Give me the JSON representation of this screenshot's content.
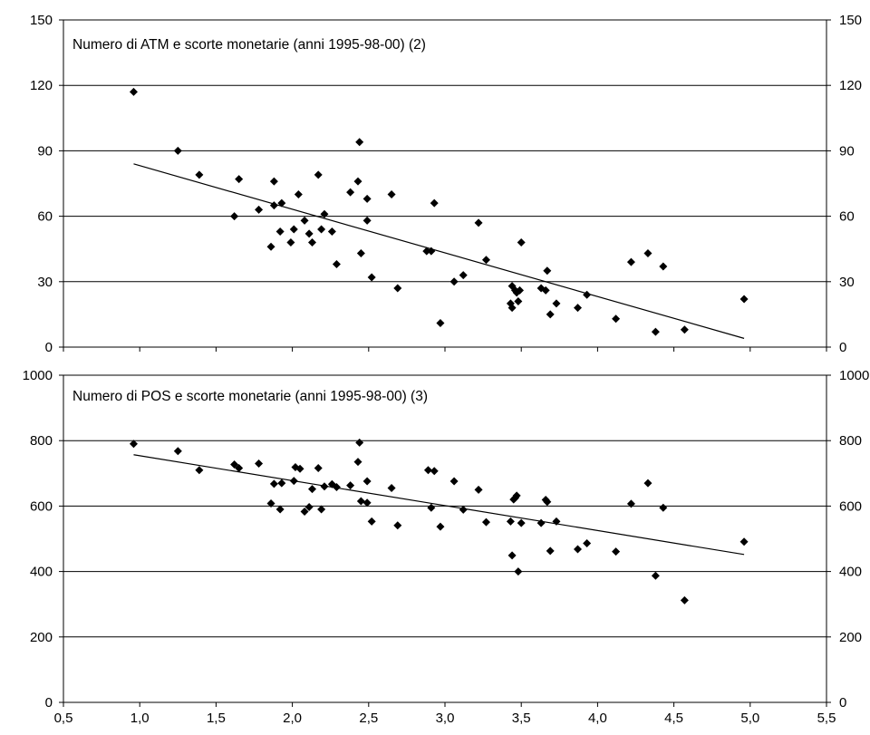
{
  "chart_data": [
    {
      "type": "scatter",
      "title": "Numero di ATM e scorte monetarie (anni 1995-98-00)  (2)",
      "xlim": [
        0.5,
        5.5
      ],
      "ylim": [
        0,
        150
      ],
      "yticks": [
        "0",
        "30",
        "60",
        "90",
        "120",
        "150"
      ],
      "dual_y_axis": true,
      "grid": "horizontal",
      "marker": "diamond",
      "points": [
        {
          "x": 0.96,
          "y": 117
        },
        {
          "x": 1.25,
          "y": 90
        },
        {
          "x": 1.39,
          "y": 79
        },
        {
          "x": 1.62,
          "y": 60
        },
        {
          "x": 1.65,
          "y": 77
        },
        {
          "x": 1.78,
          "y": 63
        },
        {
          "x": 1.86,
          "y": 46
        },
        {
          "x": 1.88,
          "y": 65
        },
        {
          "x": 1.88,
          "y": 76
        },
        {
          "x": 1.92,
          "y": 53
        },
        {
          "x": 1.93,
          "y": 66
        },
        {
          "x": 1.99,
          "y": 48
        },
        {
          "x": 2.01,
          "y": 54
        },
        {
          "x": 2.04,
          "y": 70
        },
        {
          "x": 2.08,
          "y": 58
        },
        {
          "x": 2.11,
          "y": 52
        },
        {
          "x": 2.13,
          "y": 48
        },
        {
          "x": 2.17,
          "y": 79
        },
        {
          "x": 2.19,
          "y": 54
        },
        {
          "x": 2.21,
          "y": 61
        },
        {
          "x": 2.26,
          "y": 53
        },
        {
          "x": 2.29,
          "y": 38
        },
        {
          "x": 2.38,
          "y": 71
        },
        {
          "x": 2.43,
          "y": 76
        },
        {
          "x": 2.44,
          "y": 94
        },
        {
          "x": 2.45,
          "y": 43
        },
        {
          "x": 2.49,
          "y": 58
        },
        {
          "x": 2.49,
          "y": 68
        },
        {
          "x": 2.52,
          "y": 32
        },
        {
          "x": 2.65,
          "y": 70
        },
        {
          "x": 2.69,
          "y": 27
        },
        {
          "x": 2.88,
          "y": 44
        },
        {
          "x": 2.91,
          "y": 44
        },
        {
          "x": 2.93,
          "y": 66
        },
        {
          "x": 2.97,
          "y": 11
        },
        {
          "x": 3.06,
          "y": 30
        },
        {
          "x": 3.12,
          "y": 33
        },
        {
          "x": 3.22,
          "y": 57
        },
        {
          "x": 3.27,
          "y": 40
        },
        {
          "x": 3.43,
          "y": 20
        },
        {
          "x": 3.44,
          "y": 18
        },
        {
          "x": 3.44,
          "y": 28
        },
        {
          "x": 3.46,
          "y": 26
        },
        {
          "x": 3.47,
          "y": 25
        },
        {
          "x": 3.48,
          "y": 21
        },
        {
          "x": 3.49,
          "y": 26
        },
        {
          "x": 3.5,
          "y": 48
        },
        {
          "x": 3.63,
          "y": 27
        },
        {
          "x": 3.66,
          "y": 26
        },
        {
          "x": 3.67,
          "y": 35
        },
        {
          "x": 3.69,
          "y": 15
        },
        {
          "x": 3.73,
          "y": 20
        },
        {
          "x": 3.87,
          "y": 18
        },
        {
          "x": 3.93,
          "y": 24
        },
        {
          "x": 4.12,
          "y": 13
        },
        {
          "x": 4.22,
          "y": 39
        },
        {
          "x": 4.33,
          "y": 43
        },
        {
          "x": 4.38,
          "y": 7
        },
        {
          "x": 4.43,
          "y": 37
        },
        {
          "x": 4.57,
          "y": 8
        },
        {
          "x": 4.96,
          "y": 22
        }
      ],
      "trendline": [
        {
          "x": 0.96,
          "y": 84
        },
        {
          "x": 4.96,
          "y": 4
        }
      ]
    },
    {
      "type": "scatter",
      "title": "Numero di POS e scorte monetarie (anni 1995-98-00) (3)",
      "xlim": [
        0.5,
        5.5
      ],
      "ylim": [
        0,
        1000
      ],
      "xticks": [
        "0,5",
        "1,0",
        "1,5",
        "2,0",
        "2,5",
        "3,0",
        "3,5",
        "4,0",
        "4,5",
        "5,0",
        "5,5"
      ],
      "yticks": [
        "0",
        "200",
        "400",
        "600",
        "800",
        "1000"
      ],
      "dual_y_axis": true,
      "grid": "horizontal",
      "marker": "diamond",
      "points": [
        {
          "x": 0.96,
          "y": 790
        },
        {
          "x": 1.25,
          "y": 768
        },
        {
          "x": 1.39,
          "y": 710
        },
        {
          "x": 1.62,
          "y": 727
        },
        {
          "x": 1.65,
          "y": 716
        },
        {
          "x": 1.78,
          "y": 730
        },
        {
          "x": 1.86,
          "y": 608
        },
        {
          "x": 1.88,
          "y": 668
        },
        {
          "x": 1.92,
          "y": 590
        },
        {
          "x": 1.93,
          "y": 670
        },
        {
          "x": 2.01,
          "y": 677
        },
        {
          "x": 2.02,
          "y": 719
        },
        {
          "x": 2.05,
          "y": 714
        },
        {
          "x": 2.08,
          "y": 583
        },
        {
          "x": 2.11,
          "y": 597
        },
        {
          "x": 2.13,
          "y": 652
        },
        {
          "x": 2.17,
          "y": 716
        },
        {
          "x": 2.19,
          "y": 590
        },
        {
          "x": 2.21,
          "y": 660
        },
        {
          "x": 2.26,
          "y": 667
        },
        {
          "x": 2.29,
          "y": 658
        },
        {
          "x": 2.38,
          "y": 663
        },
        {
          "x": 2.43,
          "y": 735
        },
        {
          "x": 2.44,
          "y": 794
        },
        {
          "x": 2.45,
          "y": 615
        },
        {
          "x": 2.49,
          "y": 676
        },
        {
          "x": 2.49,
          "y": 610
        },
        {
          "x": 2.52,
          "y": 553
        },
        {
          "x": 2.65,
          "y": 655
        },
        {
          "x": 2.69,
          "y": 541
        },
        {
          "x": 2.89,
          "y": 710
        },
        {
          "x": 2.91,
          "y": 595
        },
        {
          "x": 2.93,
          "y": 707
        },
        {
          "x": 2.97,
          "y": 537
        },
        {
          "x": 3.06,
          "y": 676
        },
        {
          "x": 3.12,
          "y": 589
        },
        {
          "x": 3.22,
          "y": 650
        },
        {
          "x": 3.27,
          "y": 551
        },
        {
          "x": 3.43,
          "y": 553
        },
        {
          "x": 3.44,
          "y": 449
        },
        {
          "x": 3.45,
          "y": 620
        },
        {
          "x": 3.46,
          "y": 625
        },
        {
          "x": 3.47,
          "y": 632
        },
        {
          "x": 3.48,
          "y": 400
        },
        {
          "x": 3.5,
          "y": 548
        },
        {
          "x": 3.63,
          "y": 548
        },
        {
          "x": 3.66,
          "y": 619
        },
        {
          "x": 3.67,
          "y": 613
        },
        {
          "x": 3.69,
          "y": 463
        },
        {
          "x": 3.73,
          "y": 553
        },
        {
          "x": 3.87,
          "y": 468
        },
        {
          "x": 3.93,
          "y": 486
        },
        {
          "x": 4.12,
          "y": 461
        },
        {
          "x": 4.22,
          "y": 607
        },
        {
          "x": 4.33,
          "y": 670
        },
        {
          "x": 4.38,
          "y": 387
        },
        {
          "x": 4.43,
          "y": 595
        },
        {
          "x": 4.57,
          "y": 312
        },
        {
          "x": 4.96,
          "y": 491
        }
      ],
      "trendline": [
        {
          "x": 0.96,
          "y": 757
        },
        {
          "x": 4.96,
          "y": 452
        }
      ]
    }
  ]
}
